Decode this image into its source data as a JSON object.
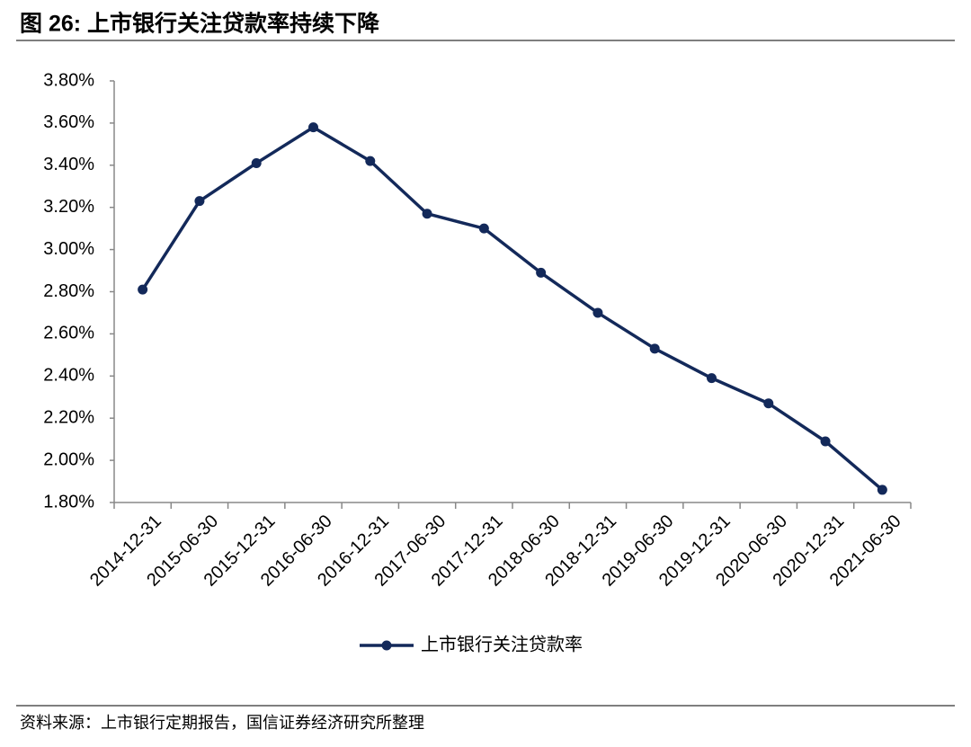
{
  "chart_data": {
    "type": "line",
    "title": "图 26: 上市银行关注贷款率持续下降",
    "source": "资料来源：上市银行定期报告，国信证券经济研究所整理",
    "categories": [
      "2014-12-31",
      "2015-06-30",
      "2015-12-31",
      "2016-06-30",
      "2016-12-31",
      "2017-06-30",
      "2017-12-31",
      "2018-06-30",
      "2018-12-31",
      "2019-06-30",
      "2019-12-31",
      "2020-06-30",
      "2020-12-31",
      "2021-06-30"
    ],
    "series": [
      {
        "name": "上市银行关注贷款率",
        "color": "#13295a",
        "values": [
          2.81,
          3.23,
          3.41,
          3.58,
          3.42,
          3.17,
          3.1,
          2.89,
          2.7,
          2.53,
          2.39,
          2.27,
          2.09,
          1.86
        ]
      }
    ],
    "ylim": [
      1.8,
      3.8
    ],
    "yticks": [
      {
        "value": 1.8,
        "label": "1.80%"
      },
      {
        "value": 2.0,
        "label": "2.00%"
      },
      {
        "value": 2.2,
        "label": "2.20%"
      },
      {
        "value": 2.4,
        "label": "2.40%"
      },
      {
        "value": 2.6,
        "label": "2.60%"
      },
      {
        "value": 2.8,
        "label": "2.80%"
      },
      {
        "value": 3.0,
        "label": "3.00%"
      },
      {
        "value": 3.2,
        "label": "3.20%"
      },
      {
        "value": 3.4,
        "label": "3.40%"
      },
      {
        "value": 3.6,
        "label": "3.60%"
      },
      {
        "value": 3.8,
        "label": "3.80%"
      }
    ],
    "grid": false,
    "legend": "bottom"
  }
}
